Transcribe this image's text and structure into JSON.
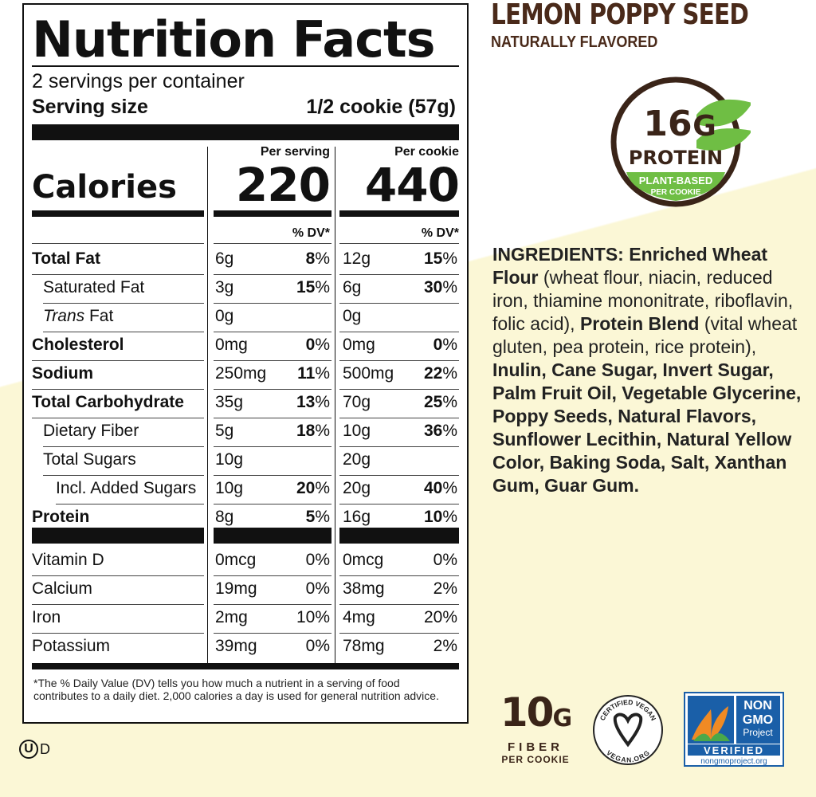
{
  "label": {
    "title": "Nutrition Facts",
    "servings": "2 servings per container",
    "serving_size_label": "Serving size",
    "serving_size_value": "1/2 cookie (57g)",
    "col1_head": "Per serving",
    "col2_head": "Per cookie",
    "calories_label": "Calories",
    "calories_serving": "220",
    "calories_cookie": "440",
    "dv_head": "% DV*",
    "nutrients": [
      {
        "name": "Total Fat",
        "bold": true,
        "indent": 0,
        "a1": "6g",
        "d1": "8",
        "a2": "12g",
        "d2": "15"
      },
      {
        "name": "Saturated Fat",
        "bold": false,
        "indent": 1,
        "a1": "3g",
        "d1": "15",
        "a2": "6g",
        "d2": "30"
      },
      {
        "name_italic": "Trans",
        "name": " Fat",
        "bold": false,
        "indent": 1,
        "a1": "0g",
        "d1": "",
        "a2": "0g",
        "d2": ""
      },
      {
        "name": "Cholesterol",
        "bold": true,
        "indent": 0,
        "a1": "0mg",
        "d1": "0",
        "a2": "0mg",
        "d2": "0"
      },
      {
        "name": "Sodium",
        "bold": true,
        "indent": 0,
        "a1": "250mg",
        "d1": "11",
        "a2": "500mg",
        "d2": "22"
      },
      {
        "name": "Total Carbohydrate",
        "bold": true,
        "indent": 0,
        "a1": "35g",
        "d1": "13",
        "a2": "70g",
        "d2": "25"
      },
      {
        "name": "Dietary Fiber",
        "bold": false,
        "indent": 1,
        "a1": "5g",
        "d1": "18",
        "a2": "10g",
        "d2": "36"
      },
      {
        "name": "Total Sugars",
        "bold": false,
        "indent": 1,
        "a1": "10g",
        "d1": "",
        "a2": "20g",
        "d2": ""
      },
      {
        "name": "Incl. Added Sugars",
        "bold": false,
        "indent": 2,
        "a1": "10g",
        "d1": "20",
        "a2": "20g",
        "d2": "40"
      },
      {
        "name": "Protein",
        "bold": true,
        "indent": 0,
        "a1": "8g",
        "d1": "5",
        "a2": "16g",
        "d2": "10"
      }
    ],
    "vitamins": [
      {
        "name": "Vitamin D",
        "a1": "0mcg",
        "d1": "0%",
        "a2": "0mcg",
        "d2": "0%"
      },
      {
        "name": "Calcium",
        "a1": "19mg",
        "d1": "0%",
        "a2": "38mg",
        "d2": "2%"
      },
      {
        "name": "Iron",
        "a1": "2mg",
        "d1": "10%",
        "a2": "4mg",
        "d2": "20%"
      },
      {
        "name": "Potassium",
        "a1": "39mg",
        "d1": "0%",
        "a2": "78mg",
        "d2": "2%"
      }
    ],
    "footnote": "*The % Daily Value (DV) tells you how much a nutrient in a serving of food contributes to a daily diet. 2,000 calories a day is used for general nutrition advice.",
    "kosher_u": "U",
    "kosher_d": "D"
  },
  "product": {
    "name": "LEMON POPPY SEED",
    "subtitle": "NATURALLY FLAVORED"
  },
  "protein_badge": {
    "amount": "16",
    "unit": "G",
    "word": "PROTEIN",
    "line1": "PLANT-BASED",
    "line2": "PER COOKIE",
    "brown": "#3a2418",
    "green": "#6fbe44"
  },
  "ingredients": [
    {
      "t": "INGREDIENTS: Enriched Wheat Flour",
      "b": true
    },
    {
      "t": " (wheat flour, niacin, reduced iron, thiamine mononitrate, riboflavin, folic acid), ",
      "b": false
    },
    {
      "t": "Protein Blend",
      "b": true
    },
    {
      "t": " (vital wheat gluten, pea protein, rice protein), ",
      "b": false
    },
    {
      "t": "Inulin, Cane Sugar, Invert Sugar, Palm Fruit Oil, Vegetable Glycerine, Poppy Seeds, Natural Flavors, Sunflower Lecithin, Natural Yellow Color, Baking Soda, Salt, Xanthan Gum, Guar Gum.",
      "b": true
    }
  ],
  "fiber_badge": {
    "amount": "10",
    "unit": "G",
    "word": "FIBER",
    "sub": "PER COOKIE"
  },
  "vegan_badge": {
    "top": "CERTIFIED VEGAN",
    "bottom": "VEGAN.ORG"
  },
  "nongmo_badge": {
    "line1": "NON",
    "line2": "GMO",
    "line3": "Project",
    "verified": "VERIFIED",
    "url": "nongmoproject.org",
    "blue": "#1a5fa8",
    "orange": "#f08a24",
    "green": "#4aa84a"
  }
}
